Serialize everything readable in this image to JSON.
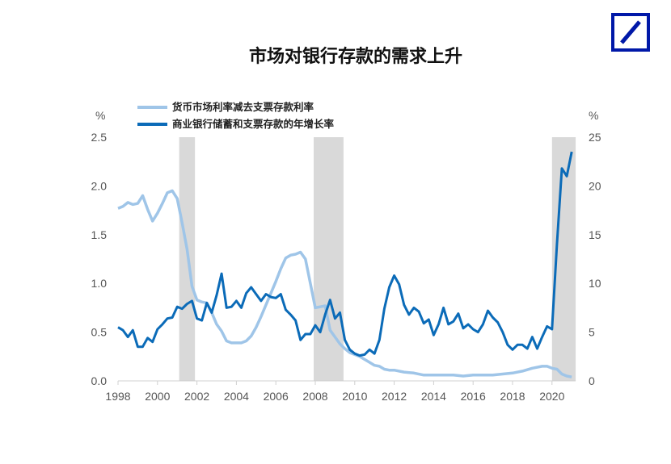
{
  "title": "市场对银行存款的需求上升",
  "logo": "Deutsche Bank",
  "chart_data": {
    "type": "line",
    "title": "市场对银行存款的需求上升",
    "left_unit": "%",
    "right_unit": "%",
    "ylim_left": [
      0,
      2.5
    ],
    "ylim_right": [
      0,
      25
    ],
    "left_ticks": [
      "0.0",
      "0.5",
      "1.0",
      "1.5",
      "2.0",
      "2.5"
    ],
    "right_ticks": [
      "0",
      "5",
      "10",
      "15",
      "20",
      "25"
    ],
    "xlim": [
      1998,
      2021.2
    ],
    "x_ticks": [
      "1998",
      "2000",
      "2002",
      "2004",
      "2006",
      "2008",
      "2010",
      "2012",
      "2014",
      "2016",
      "2018",
      "2020"
    ],
    "legend_placement": "top-left",
    "recessions": [
      [
        2001.1,
        2001.9
      ],
      [
        2007.92,
        2009.43
      ],
      [
        2020.0,
        2021.2
      ]
    ],
    "colors": {
      "spread": "#9fc5e8",
      "deposits": "#0b6bb8",
      "shade": "#d9d9d9"
    },
    "series": [
      {
        "name": "货币市场利率减去支票存款利率",
        "axis": "left",
        "x": [
          1998,
          1998.25,
          1998.5,
          1998.75,
          1999,
          1999.25,
          1999.5,
          1999.75,
          2000,
          2000.25,
          2000.5,
          2000.75,
          2001,
          2001.25,
          2001.5,
          2001.75,
          2002,
          2002.25,
          2002.5,
          2002.75,
          2003,
          2003.25,
          2003.5,
          2003.75,
          2004,
          2004.25,
          2004.5,
          2004.75,
          2005,
          2005.25,
          2005.5,
          2005.75,
          2006,
          2006.25,
          2006.5,
          2006.75,
          2007,
          2007.25,
          2007.5,
          2007.75,
          2008,
          2008.25,
          2008.5,
          2008.75,
          2009,
          2009.25,
          2009.5,
          2009.75,
          2010,
          2010.25,
          2010.5,
          2010.75,
          2011,
          2011.25,
          2011.5,
          2011.75,
          2012,
          2012.5,
          2013,
          2013.5,
          2014,
          2014.5,
          2015,
          2015.5,
          2016,
          2016.5,
          2017,
          2017.5,
          2018,
          2018.5,
          2019,
          2019.5,
          2019.75,
          2020,
          2020.25,
          2020.5,
          2020.75,
          2021
        ],
        "values": [
          1.77,
          1.79,
          1.83,
          1.81,
          1.82,
          1.9,
          1.76,
          1.64,
          1.72,
          1.82,
          1.93,
          1.95,
          1.87,
          1.62,
          1.35,
          0.97,
          0.83,
          0.81,
          0.8,
          0.7,
          0.58,
          0.51,
          0.41,
          0.39,
          0.39,
          0.39,
          0.41,
          0.46,
          0.55,
          0.66,
          0.78,
          0.9,
          1.02,
          1.15,
          1.26,
          1.29,
          1.3,
          1.32,
          1.25,
          1.0,
          0.75,
          0.76,
          0.77,
          0.52,
          0.45,
          0.38,
          0.33,
          0.29,
          0.27,
          0.25,
          0.22,
          0.19,
          0.16,
          0.15,
          0.12,
          0.11,
          0.11,
          0.09,
          0.08,
          0.06,
          0.06,
          0.06,
          0.06,
          0.05,
          0.06,
          0.06,
          0.06,
          0.07,
          0.08,
          0.1,
          0.13,
          0.15,
          0.15,
          0.13,
          0.12,
          0.07,
          0.05,
          0.04
        ]
      },
      {
        "name": "商业银行储蓄和支票存款的年增长率",
        "axis": "right",
        "x": [
          1998,
          1998.25,
          1998.5,
          1998.75,
          1999,
          1999.25,
          1999.5,
          1999.75,
          2000,
          2000.25,
          2000.5,
          2000.75,
          2001,
          2001.25,
          2001.5,
          2001.75,
          2002,
          2002.25,
          2002.5,
          2002.75,
          2003,
          2003.25,
          2003.5,
          2003.75,
          2004,
          2004.25,
          2004.5,
          2004.75,
          2005,
          2005.25,
          2005.5,
          2005.75,
          2006,
          2006.25,
          2006.5,
          2006.75,
          2007,
          2007.25,
          2007.5,
          2007.75,
          2008,
          2008.25,
          2008.5,
          2008.75,
          2009,
          2009.25,
          2009.5,
          2009.75,
          2010,
          2010.25,
          2010.5,
          2010.75,
          2011,
          2011.25,
          2011.5,
          2011.75,
          2012,
          2012.25,
          2012.5,
          2012.75,
          2013,
          2013.25,
          2013.5,
          2013.75,
          2014,
          2014.25,
          2014.5,
          2014.75,
          2015,
          2015.25,
          2015.5,
          2015.75,
          2016,
          2016.25,
          2016.5,
          2016.75,
          2017,
          2017.25,
          2017.5,
          2017.75,
          2018,
          2018.25,
          2018.5,
          2018.75,
          2019,
          2019.25,
          2019.5,
          2019.75,
          2020,
          2020.25,
          2020.5,
          2020.75,
          2021
        ],
        "values": [
          5.5,
          5.2,
          4.5,
          5.2,
          3.5,
          3.5,
          4.4,
          4.0,
          5.3,
          5.8,
          6.4,
          6.5,
          7.6,
          7.4,
          7.9,
          8.2,
          6.4,
          6.2,
          8.0,
          7.0,
          8.8,
          11.0,
          7.5,
          7.6,
          8.2,
          7.5,
          9.0,
          9.6,
          8.9,
          8.2,
          8.9,
          8.6,
          8.5,
          8.9,
          7.3,
          6.8,
          6.2,
          4.2,
          4.8,
          4.8,
          5.7,
          5.0,
          6.8,
          8.3,
          6.4,
          7.0,
          4.2,
          3.2,
          2.8,
          2.6,
          2.7,
          3.2,
          2.8,
          4.2,
          7.4,
          9.6,
          10.8,
          9.9,
          7.8,
          6.8,
          7.5,
          7.1,
          5.9,
          6.3,
          4.7,
          5.8,
          7.5,
          5.8,
          6.1,
          6.9,
          5.4,
          5.8,
          5.3,
          5.0,
          5.8,
          7.2,
          6.5,
          6.0,
          5.0,
          3.7,
          3.2,
          3.7,
          3.7,
          3.3,
          4.5,
          3.3,
          4.5,
          5.6,
          5.3,
          14.0,
          21.8,
          21.0,
          23.5
        ]
      }
    ]
  }
}
